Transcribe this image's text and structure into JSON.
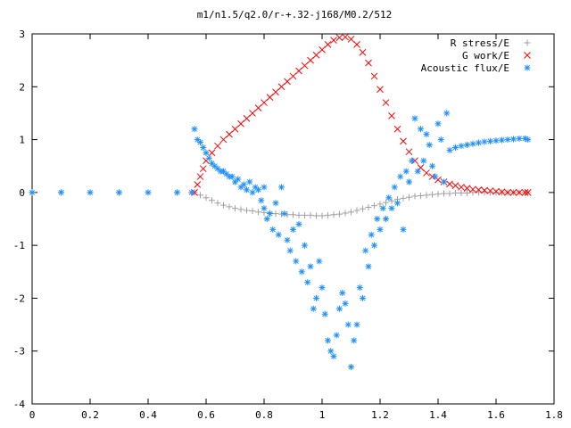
{
  "chart_data": {
    "type": "scatter",
    "title": "m1/n1.5/q2.0/r-+.32-j168/M0.2/512",
    "xlabel": "",
    "ylabel": "",
    "xlim": [
      0,
      1.8
    ],
    "ylim": [
      -4,
      3
    ],
    "x_ticks": [
      "0",
      "0.2",
      "0.4",
      "0.6",
      "0.8",
      "1",
      "1.2",
      "1.4",
      "1.6",
      "1.8"
    ],
    "y_ticks": [
      "-4",
      "-3",
      "-2",
      "-1",
      "0",
      "1",
      "2",
      "3"
    ],
    "grid": false,
    "legend_position": "top-right",
    "series": [
      {
        "name": "R stress/E",
        "color": "#a0a0a0",
        "marker": "plus",
        "points": [
          [
            0,
            0
          ],
          [
            0.1,
            0
          ],
          [
            0.2,
            0
          ],
          [
            0.3,
            0
          ],
          [
            0.4,
            0
          ],
          [
            0.5,
            0
          ],
          [
            0.56,
            0
          ],
          [
            0.58,
            -0.05
          ],
          [
            0.6,
            -0.1
          ],
          [
            0.62,
            -0.15
          ],
          [
            0.64,
            -0.2
          ],
          [
            0.66,
            -0.24
          ],
          [
            0.68,
            -0.27
          ],
          [
            0.7,
            -0.3
          ],
          [
            0.72,
            -0.32
          ],
          [
            0.74,
            -0.34
          ],
          [
            0.76,
            -0.35
          ],
          [
            0.78,
            -0.37
          ],
          [
            0.8,
            -0.38
          ],
          [
            0.82,
            -0.39
          ],
          [
            0.84,
            -0.4
          ],
          [
            0.86,
            -0.41
          ],
          [
            0.88,
            -0.42
          ],
          [
            0.9,
            -0.42
          ],
          [
            0.92,
            -0.43
          ],
          [
            0.94,
            -0.43
          ],
          [
            0.96,
            -0.43
          ],
          [
            0.98,
            -0.44
          ],
          [
            1.0,
            -0.44
          ],
          [
            1.02,
            -0.43
          ],
          [
            1.04,
            -0.42
          ],
          [
            1.06,
            -0.41
          ],
          [
            1.08,
            -0.39
          ],
          [
            1.1,
            -0.37
          ],
          [
            1.12,
            -0.34
          ],
          [
            1.14,
            -0.31
          ],
          [
            1.16,
            -0.28
          ],
          [
            1.18,
            -0.25
          ],
          [
            1.2,
            -0.22
          ],
          [
            1.22,
            -0.19
          ],
          [
            1.24,
            -0.16
          ],
          [
            1.26,
            -0.13
          ],
          [
            1.28,
            -0.11
          ],
          [
            1.3,
            -0.09
          ],
          [
            1.32,
            -0.07
          ],
          [
            1.34,
            -0.06
          ],
          [
            1.36,
            -0.05
          ],
          [
            1.38,
            -0.04
          ],
          [
            1.4,
            -0.03
          ],
          [
            1.42,
            -0.02
          ],
          [
            1.44,
            -0.02
          ],
          [
            1.46,
            -0.01
          ],
          [
            1.48,
            -0.01
          ],
          [
            1.5,
            -0.01
          ],
          [
            1.52,
            0
          ],
          [
            1.54,
            0
          ],
          [
            1.56,
            0
          ],
          [
            1.58,
            0
          ],
          [
            1.6,
            0
          ],
          [
            1.62,
            0
          ],
          [
            1.64,
            0
          ],
          [
            1.66,
            0
          ],
          [
            1.68,
            0
          ],
          [
            1.7,
            0
          ],
          [
            1.71,
            0
          ]
        ]
      },
      {
        "name": "G work/E",
        "color": "#ff0000",
        "marker": "cross",
        "points": [
          [
            0.56,
            0
          ],
          [
            0.57,
            0.15
          ],
          [
            0.58,
            0.3
          ],
          [
            0.59,
            0.45
          ],
          [
            0.6,
            0.6
          ],
          [
            0.62,
            0.75
          ],
          [
            0.64,
            0.88
          ],
          [
            0.66,
            1.0
          ],
          [
            0.68,
            1.1
          ],
          [
            0.7,
            1.2
          ],
          [
            0.72,
            1.3
          ],
          [
            0.74,
            1.4
          ],
          [
            0.76,
            1.5
          ],
          [
            0.78,
            1.6
          ],
          [
            0.8,
            1.7
          ],
          [
            0.82,
            1.8
          ],
          [
            0.84,
            1.9
          ],
          [
            0.86,
            2.0
          ],
          [
            0.88,
            2.1
          ],
          [
            0.9,
            2.2
          ],
          [
            0.92,
            2.3
          ],
          [
            0.94,
            2.4
          ],
          [
            0.96,
            2.5
          ],
          [
            0.98,
            2.6
          ],
          [
            1.0,
            2.7
          ],
          [
            1.02,
            2.8
          ],
          [
            1.04,
            2.88
          ],
          [
            1.06,
            2.93
          ],
          [
            1.08,
            2.94
          ],
          [
            1.1,
            2.9
          ],
          [
            1.12,
            2.8
          ],
          [
            1.14,
            2.65
          ],
          [
            1.16,
            2.45
          ],
          [
            1.18,
            2.2
          ],
          [
            1.2,
            1.95
          ],
          [
            1.22,
            1.7
          ],
          [
            1.24,
            1.45
          ],
          [
            1.26,
            1.2
          ],
          [
            1.28,
            0.97
          ],
          [
            1.3,
            0.77
          ],
          [
            1.32,
            0.6
          ],
          [
            1.34,
            0.47
          ],
          [
            1.36,
            0.37
          ],
          [
            1.38,
            0.3
          ],
          [
            1.4,
            0.24
          ],
          [
            1.42,
            0.2
          ],
          [
            1.44,
            0.16
          ],
          [
            1.46,
            0.13
          ],
          [
            1.48,
            0.1
          ],
          [
            1.5,
            0.08
          ],
          [
            1.52,
            0.06
          ],
          [
            1.54,
            0.05
          ],
          [
            1.56,
            0.04
          ],
          [
            1.58,
            0.03
          ],
          [
            1.6,
            0.02
          ],
          [
            1.62,
            0.01
          ],
          [
            1.64,
            0
          ],
          [
            1.66,
            0
          ],
          [
            1.68,
            0
          ],
          [
            1.7,
            0
          ],
          [
            1.71,
            0
          ]
        ]
      },
      {
        "name": "Acoustic flux/E",
        "color": "#1e90ff",
        "marker": "star",
        "points": [
          [
            0,
            0
          ],
          [
            0.1,
            0
          ],
          [
            0.2,
            0
          ],
          [
            0.3,
            0
          ],
          [
            0.4,
            0
          ],
          [
            0.5,
            0
          ],
          [
            0.55,
            0
          ],
          [
            0.56,
            1.2
          ],
          [
            0.57,
            1.0
          ],
          [
            0.58,
            0.95
          ],
          [
            0.59,
            0.85
          ],
          [
            0.6,
            0.75
          ],
          [
            0.61,
            0.65
          ],
          [
            0.62,
            0.55
          ],
          [
            0.63,
            0.5
          ],
          [
            0.64,
            0.45
          ],
          [
            0.65,
            0.4
          ],
          [
            0.66,
            0.4
          ],
          [
            0.67,
            0.35
          ],
          [
            0.68,
            0.3
          ],
          [
            0.69,
            0.3
          ],
          [
            0.7,
            0.2
          ],
          [
            0.71,
            0.25
          ],
          [
            0.72,
            0.1
          ],
          [
            0.73,
            0.15
          ],
          [
            0.74,
            0.05
          ],
          [
            0.75,
            0.2
          ],
          [
            0.76,
            0
          ],
          [
            0.77,
            0.1
          ],
          [
            0.78,
            0.05
          ],
          [
            0.79,
            -0.15
          ],
          [
            0.8,
            0.1
          ],
          [
            0.8,
            -0.3
          ],
          [
            0.81,
            -0.5
          ],
          [
            0.82,
            -0.4
          ],
          [
            0.83,
            -0.7
          ],
          [
            0.84,
            -0.2
          ],
          [
            0.85,
            -0.8
          ],
          [
            0.86,
            0.1
          ],
          [
            0.87,
            -0.4
          ],
          [
            0.88,
            -0.9
          ],
          [
            0.89,
            -1.1
          ],
          [
            0.9,
            -0.7
          ],
          [
            0.91,
            -1.3
          ],
          [
            0.92,
            -0.6
          ],
          [
            0.93,
            -1.5
          ],
          [
            0.94,
            -1.0
          ],
          [
            0.95,
            -1.7
          ],
          [
            0.96,
            -1.4
          ],
          [
            0.97,
            -2.2
          ],
          [
            0.98,
            -2.0
          ],
          [
            0.99,
            -1.3
          ],
          [
            1.0,
            -1.8
          ],
          [
            1.01,
            -2.3
          ],
          [
            1.02,
            -2.8
          ],
          [
            1.03,
            -3.0
          ],
          [
            1.04,
            -3.1
          ],
          [
            1.05,
            -2.7
          ],
          [
            1.06,
            -2.2
          ],
          [
            1.07,
            -1.9
          ],
          [
            1.08,
            -2.1
          ],
          [
            1.09,
            -2.5
          ],
          [
            1.1,
            -3.3
          ],
          [
            1.11,
            -2.8
          ],
          [
            1.12,
            -2.5
          ],
          [
            1.13,
            -1.8
          ],
          [
            1.14,
            -2.0
          ],
          [
            1.15,
            -1.1
          ],
          [
            1.16,
            -1.4
          ],
          [
            1.17,
            -0.8
          ],
          [
            1.18,
            -1.0
          ],
          [
            1.19,
            -0.5
          ],
          [
            1.2,
            -0.7
          ],
          [
            1.21,
            -0.3
          ],
          [
            1.22,
            -0.5
          ],
          [
            1.23,
            -0.1
          ],
          [
            1.24,
            -0.3
          ],
          [
            1.25,
            0.1
          ],
          [
            1.26,
            -0.2
          ],
          [
            1.27,
            0.3
          ],
          [
            1.28,
            -0.7
          ],
          [
            1.29,
            0.4
          ],
          [
            1.3,
            0.2
          ],
          [
            1.31,
            0.6
          ],
          [
            1.32,
            1.4
          ],
          [
            1.33,
            0.4
          ],
          [
            1.34,
            1.2
          ],
          [
            1.35,
            0.6
          ],
          [
            1.36,
            1.1
          ],
          [
            1.37,
            0.9
          ],
          [
            1.38,
            0.5
          ],
          [
            1.39,
            0.3
          ],
          [
            1.4,
            1.3
          ],
          [
            1.41,
            1.0
          ],
          [
            1.42,
            0.2
          ],
          [
            1.43,
            1.5
          ],
          [
            1.44,
            0.8
          ],
          [
            1.46,
            0.85
          ],
          [
            1.48,
            0.88
          ],
          [
            1.5,
            0.9
          ],
          [
            1.52,
            0.92
          ],
          [
            1.54,
            0.94
          ],
          [
            1.56,
            0.96
          ],
          [
            1.58,
            0.97
          ],
          [
            1.6,
            0.98
          ],
          [
            1.62,
            0.99
          ],
          [
            1.64,
            1.0
          ],
          [
            1.66,
            1.01
          ],
          [
            1.68,
            1.02
          ],
          [
            1.7,
            1.02
          ],
          [
            1.71,
            1.0
          ]
        ]
      }
    ]
  }
}
